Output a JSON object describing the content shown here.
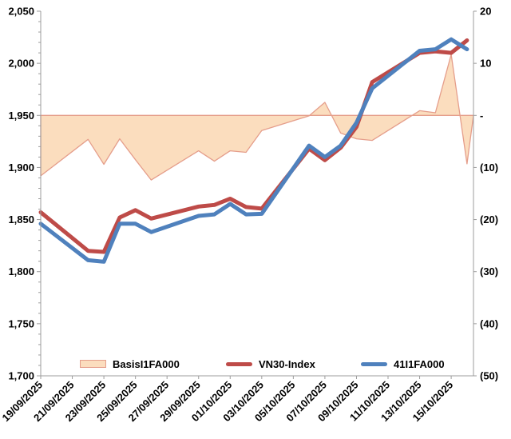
{
  "chart_data": {
    "type": "line",
    "title": "",
    "x_dates": [
      "19/09/2025",
      "22/09/2025",
      "23/09/2025",
      "24/09/2025",
      "25/09/2025",
      "26/09/2025",
      "29/09/2025",
      "30/09/2025",
      "01/10/2025",
      "02/10/2025",
      "03/10/2025",
      "06/10/2025",
      "07/10/2025",
      "08/10/2025",
      "09/10/2025",
      "10/10/2025",
      "13/10/2025",
      "14/10/2025",
      "15/10/2025",
      "16/10/2025"
    ],
    "x_day_index": [
      0,
      3,
      4,
      5,
      6,
      7,
      10,
      11,
      12,
      13,
      14,
      17,
      18,
      19,
      20,
      21,
      24,
      25,
      26,
      27
    ],
    "series": [
      {
        "name": "BasisI1FA000",
        "type": "area",
        "axis": "right",
        "fill": "#FBDDBE",
        "stroke": "#E59E8B",
        "values": [
          -11.6,
          -4.6,
          -9.4,
          -4.5,
          -8.5,
          -12.4,
          -6.8,
          -8.8,
          -6.8,
          -7.1,
          -2.9,
          -0.1,
          2.5,
          -3.4,
          -4.5,
          -4.8,
          0.9,
          0.5,
          11.7,
          -9.3
        ]
      },
      {
        "name": "VN30-Index",
        "type": "line",
        "axis": "left",
        "stroke": "#BE4B48",
        "values": [
          1857,
          1820,
          1819,
          1852,
          1859,
          1851,
          1862.5,
          1864,
          1870,
          1862,
          1860.5,
          1918,
          1907,
          1919,
          1939,
          1982,
          2010,
          2011.5,
          2010,
          2022
        ]
      },
      {
        "name": "41I1FA000",
        "type": "line",
        "axis": "left",
        "stroke": "#4F81BD",
        "values": [
          1846,
          1811,
          1809.5,
          1846,
          1846,
          1838,
          1853.5,
          1855,
          1865,
          1855,
          1855.5,
          1921,
          1910,
          1921,
          1943,
          1976,
          2012,
          2013.5,
          2023,
          2013.5
        ]
      }
    ],
    "left_axis": {
      "min": 1700,
      "max": 2050,
      "major_step": 50,
      "minor_step": 10,
      "tick_labels": [
        "2,050",
        "2,000",
        "1,950",
        "1,900",
        "1,850",
        "1,800",
        "1,750",
        "1,700"
      ]
    },
    "right_axis": {
      "min": -50,
      "max": 20,
      "major_step": 10,
      "tick_labels": [
        "20",
        "10",
        "-",
        "(10)",
        "(20)",
        "(30)",
        "(40)",
        "(50)"
      ]
    },
    "x_axis": {
      "tick_labels": [
        "19/09/2025",
        "21/09/2025",
        "23/09/2025",
        "25/09/2025",
        "27/09/2025",
        "29/09/2025",
        "01/10/2025",
        "03/10/2025",
        "05/10/2025",
        "07/10/2025",
        "09/10/2025",
        "11/10/2025",
        "13/10/2025",
        "15/10/2025"
      ],
      "days_per_tick": 2
    },
    "grid": "off",
    "legend_position": "bottom-inside"
  },
  "legend": {
    "items": [
      {
        "label": "BasisI1FA000"
      },
      {
        "label": "VN30-Index"
      },
      {
        "label": "41I1FA000"
      }
    ]
  },
  "colors": {
    "area_fill": "#FBDDBE",
    "area_stroke": "#E59E8B",
    "vn30_line": "#BE4B48",
    "futures_line": "#4F81BD",
    "axis_line": "#9C9C9C",
    "text": "#000000"
  }
}
